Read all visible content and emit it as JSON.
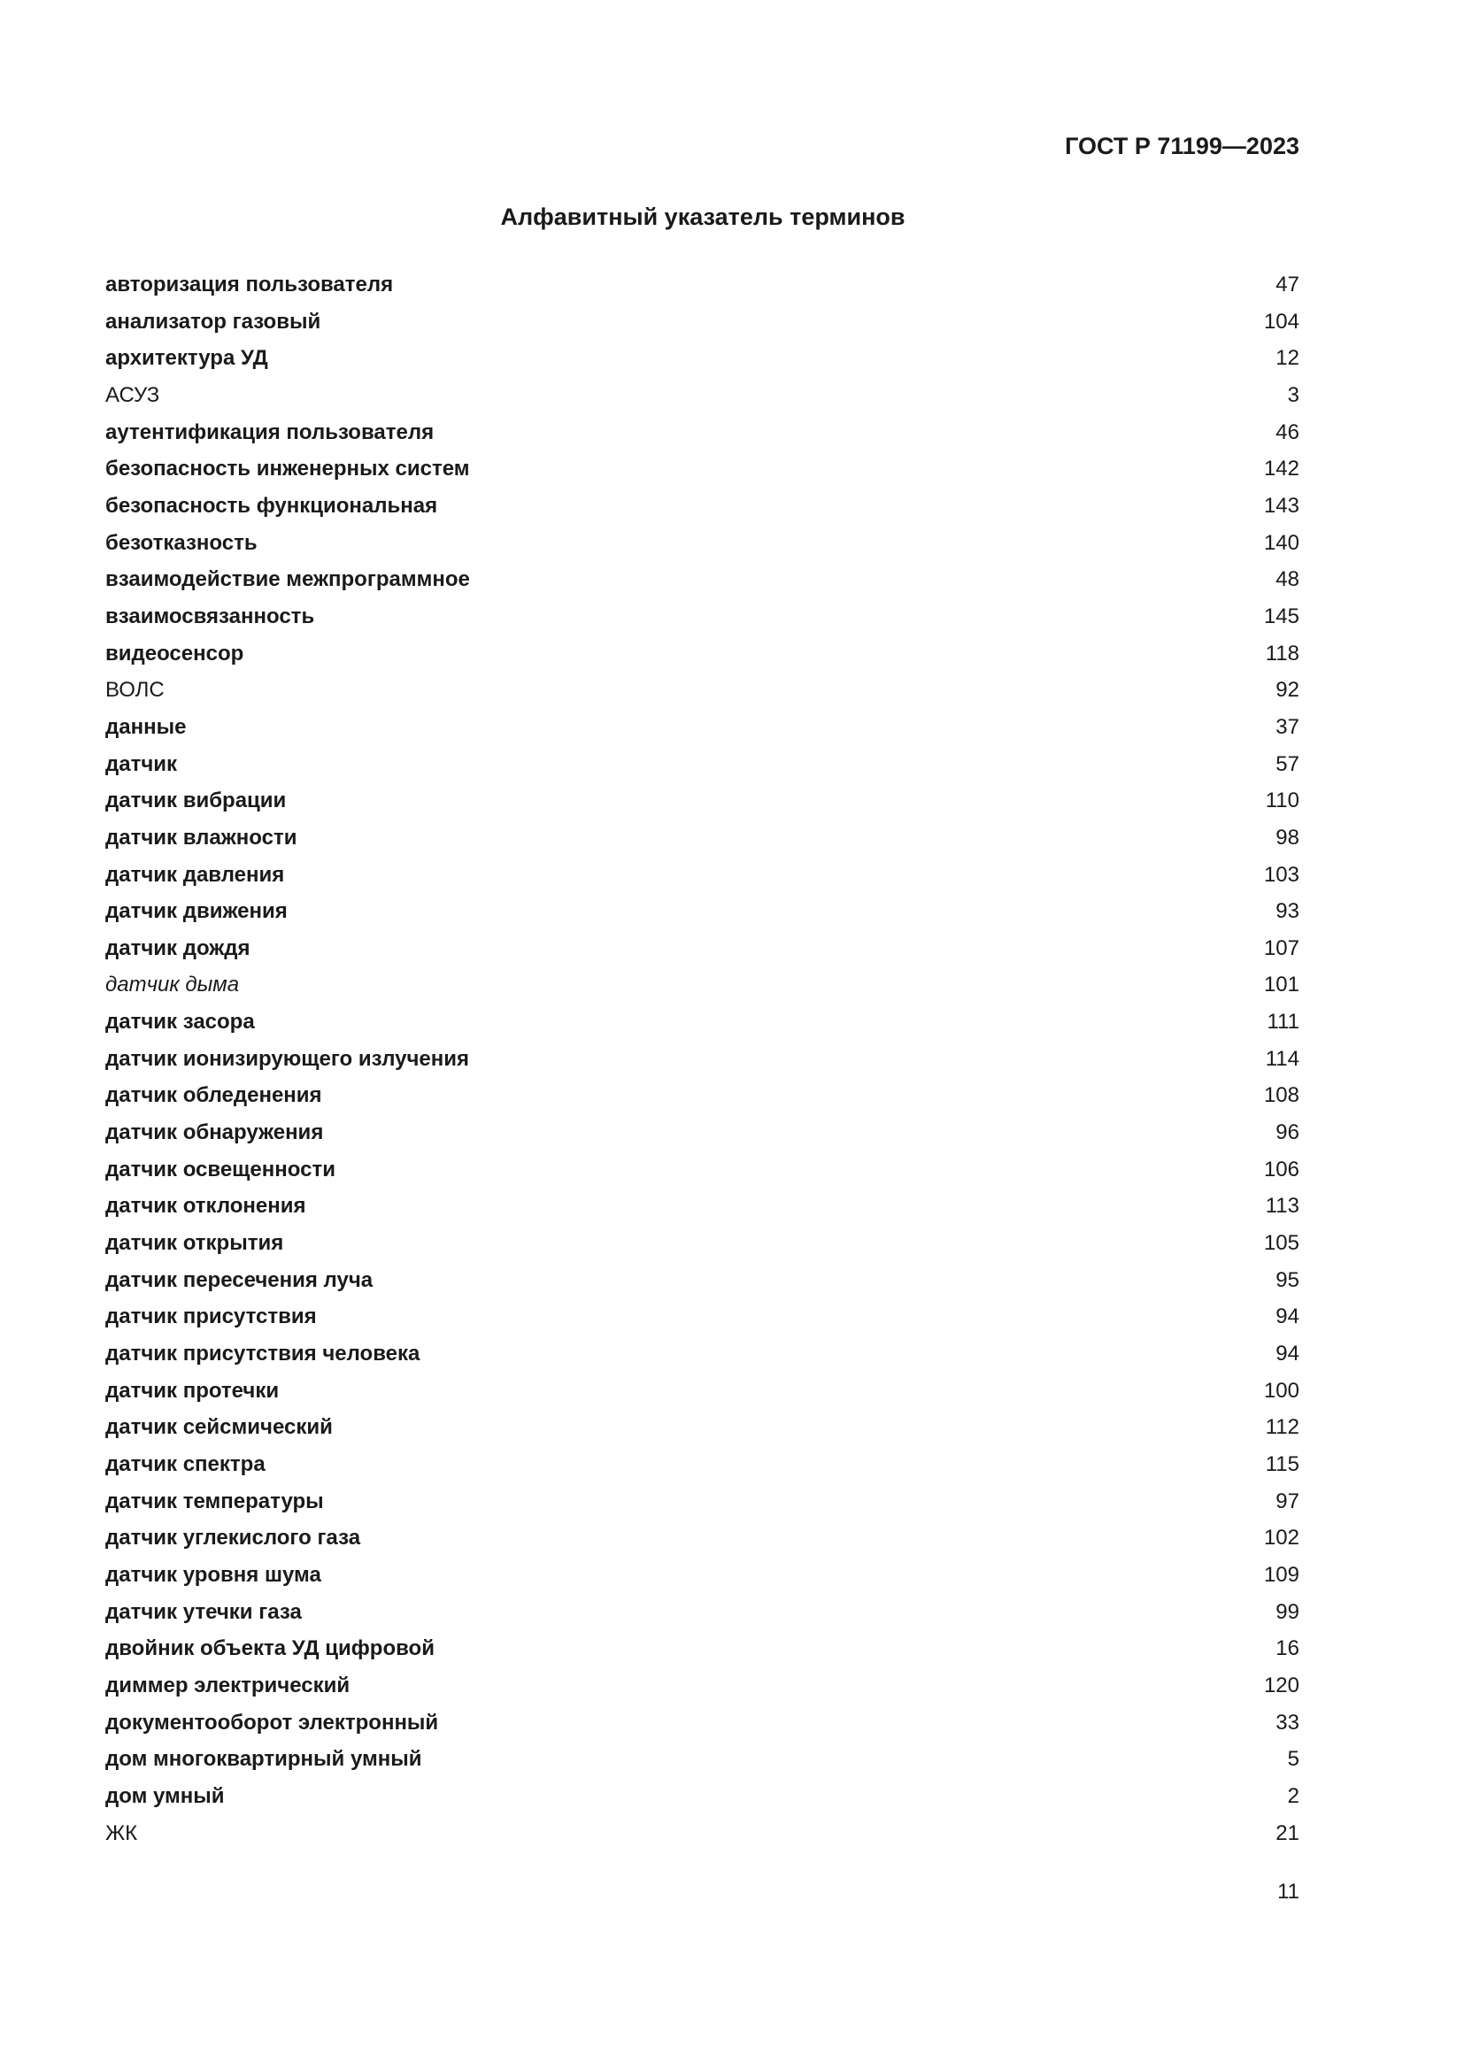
{
  "header": {
    "document_code": "ГОСТ Р 71199—2023"
  },
  "title": "Алфавитный указатель терминов",
  "entries": [
    {
      "term": "авторизация пользователя",
      "ref": "47",
      "style": "bold"
    },
    {
      "term": "анализатор газовый",
      "ref": "104",
      "style": "bold"
    },
    {
      "term": "архитектура УД",
      "ref": "12",
      "style": "bold"
    },
    {
      "term": "АСУЗ",
      "ref": "3",
      "style": "normal"
    },
    {
      "term": "аутентификация пользователя",
      "ref": "46",
      "style": "bold"
    },
    {
      "term": "безопасность инженерных систем",
      "ref": "142",
      "style": "bold"
    },
    {
      "term": "безопасность функциональная",
      "ref": "143",
      "style": "bold"
    },
    {
      "term": "безотказность",
      "ref": "140",
      "style": "bold"
    },
    {
      "term": "взаимодействие межпрограммное",
      "ref": "48",
      "style": "bold"
    },
    {
      "term": "взаимосвязанность",
      "ref": "145",
      "style": "bold"
    },
    {
      "term": "видеосенсор",
      "ref": "118",
      "style": "bold"
    },
    {
      "term": "ВОЛС",
      "ref": "92",
      "style": "normal"
    },
    {
      "term": "данные",
      "ref": "37",
      "style": "bold"
    },
    {
      "term": "датчик",
      "ref": "57",
      "style": "bold"
    },
    {
      "term": "датчик вибрации",
      "ref": "110",
      "style": "bold"
    },
    {
      "term": "датчик влажности",
      "ref": "98",
      "style": "bold"
    },
    {
      "term": "датчик давления",
      "ref": "103",
      "style": "bold"
    },
    {
      "term": "датчик движения",
      "ref": "93",
      "style": "bold"
    },
    {
      "term": "датчик дождя",
      "ref": "107",
      "style": "bold"
    },
    {
      "term": "датчик дыма",
      "ref": "101",
      "style": "italic"
    },
    {
      "term": "датчик засора",
      "ref": "111",
      "style": "bold"
    },
    {
      "term": "датчик ионизирующего излучения",
      "ref": "114",
      "style": "bold"
    },
    {
      "term": "датчик обледенения",
      "ref": "108",
      "style": "bold"
    },
    {
      "term": "датчик обнаружения",
      "ref": "96",
      "style": "bold"
    },
    {
      "term": "датчик освещенности",
      "ref": "106",
      "style": "bold"
    },
    {
      "term": "датчик отклонения",
      "ref": "113",
      "style": "bold"
    },
    {
      "term": "датчик открытия",
      "ref": "105",
      "style": "bold"
    },
    {
      "term": "датчик пересечения луча",
      "ref": "95",
      "style": "bold"
    },
    {
      "term": "датчик присутствия",
      "ref": "94",
      "style": "bold"
    },
    {
      "term": "датчик присутствия человека",
      "ref": "94",
      "style": "bold"
    },
    {
      "term": "датчик протечки",
      "ref": "100",
      "style": "bold"
    },
    {
      "term": "датчик сейсмический",
      "ref": "112",
      "style": "bold"
    },
    {
      "term": "датчик спектра",
      "ref": "115",
      "style": "bold"
    },
    {
      "term": "датчик температуры",
      "ref": "97",
      "style": "bold"
    },
    {
      "term": "датчик углекислого газа",
      "ref": "102",
      "style": "bold"
    },
    {
      "term": "датчик уровня шума",
      "ref": "109",
      "style": "bold"
    },
    {
      "term": "датчик утечки газа",
      "ref": "99",
      "style": "bold"
    },
    {
      "term": "двойник объекта УД цифровой",
      "ref": "16",
      "style": "bold"
    },
    {
      "term": "диммер электрический",
      "ref": "120",
      "style": "bold"
    },
    {
      "term": "документооборот электронный",
      "ref": "33",
      "style": "bold"
    },
    {
      "term": "дом многоквартирный умный",
      "ref": "5",
      "style": "bold"
    },
    {
      "term": "дом умный",
      "ref": "2",
      "style": "bold"
    },
    {
      "term": "ЖК",
      "ref": "21",
      "style": "normal"
    }
  ],
  "footer": {
    "page_number": "11"
  }
}
